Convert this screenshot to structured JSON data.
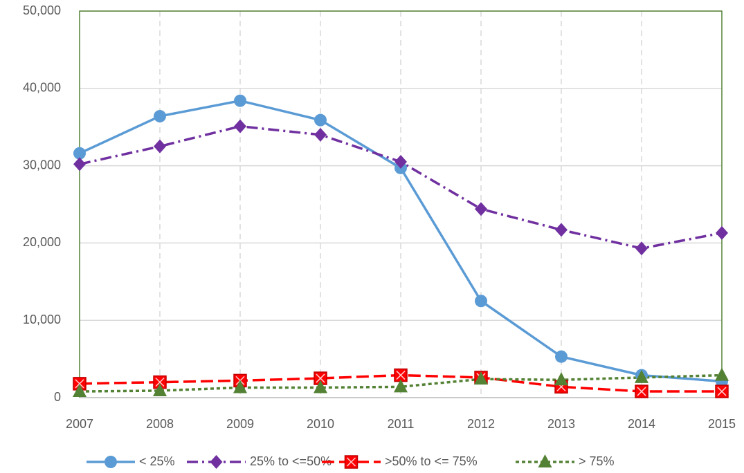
{
  "chart_data": {
    "type": "line",
    "categories": [
      "2007",
      "2008",
      "2009",
      "2010",
      "2011",
      "2012",
      "2013",
      "2014",
      "2015"
    ],
    "series": [
      {
        "name": "< 25%",
        "color": "#5b9bd5",
        "line_style": "solid",
        "marker": "circle",
        "values": [
          31600,
          36400,
          38400,
          35900,
          29700,
          12500,
          5300,
          2900,
          2100
        ]
      },
      {
        "name": "25% to <=50%",
        "color": "#7030a0",
        "line_style": "dashdot",
        "marker": "diamond",
        "values": [
          30200,
          32500,
          35100,
          34000,
          30500,
          24400,
          21700,
          19300,
          21300
        ]
      },
      {
        "name": ">50% to <= 75%",
        "color": "#ff0000",
        "line_style": "dash",
        "marker": "square-x",
        "values": [
          1800,
          2000,
          2200,
          2500,
          2900,
          2600,
          1400,
          800,
          800
        ]
      },
      {
        "name": "> 75%",
        "color": "#548235",
        "line_style": "dot",
        "marker": "triangle",
        "values": [
          800,
          900,
          1300,
          1300,
          1400,
          2400,
          2300,
          2600,
          2900
        ]
      }
    ],
    "ylim": [
      0,
      50000
    ],
    "yticks": [
      0,
      {
        "value": 10000,
        "label": "10,000"
      },
      {
        "value": 20000,
        "label": "20,000"
      },
      {
        "value": 30000,
        "label": "30,000"
      },
      {
        "value": 40000,
        "label": "40,000"
      },
      {
        "value": 50000,
        "label": "50,000"
      }
    ],
    "grid": true,
    "legend": "bottom"
  }
}
